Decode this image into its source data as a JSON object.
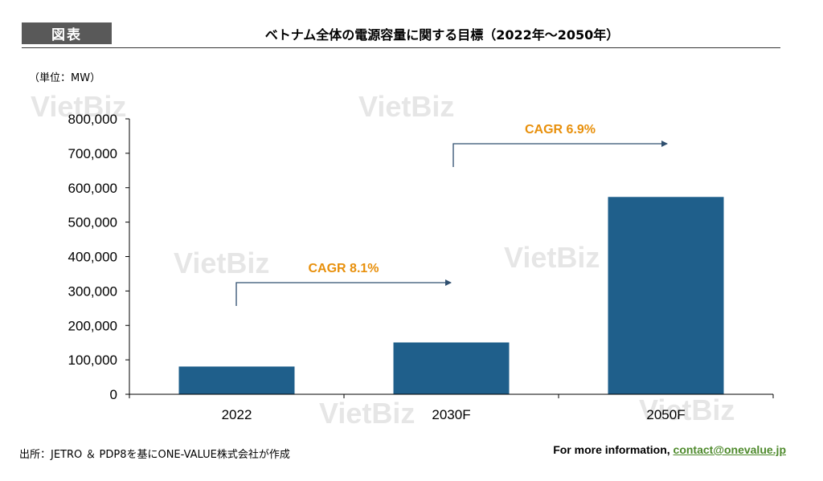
{
  "header": {
    "tag": "図表",
    "title": "ベトナム全体の電源容量に関する目標（2022年～2050年）"
  },
  "unit_label": "（単位：MW）",
  "watermark": "VietBiz",
  "chart_data": {
    "type": "bar",
    "categories": [
      "2022",
      "2030F",
      "2050F"
    ],
    "values": [
      80555,
      150489,
      573129
    ],
    "ylim": [
      0,
      800000
    ],
    "yticks": [
      "0",
      "100,000",
      "200,000",
      "300,000",
      "400,000",
      "500,000",
      "600,000",
      "700,000",
      "800,000"
    ],
    "bar_color": "#1f5f8b",
    "grid": false,
    "annotations": [
      {
        "label": "CAGR 8.1%",
        "from": "2022",
        "to": "2030F",
        "color": "#e8900c"
      },
      {
        "label": "CAGR 6.9%",
        "from": "2030F",
        "to": "2050F",
        "color": "#e8900c"
      }
    ]
  },
  "footer": {
    "source": "出所：JETRO ＆ PDP8を基にONE-VALUE株式会社が作成",
    "info_prefix": "For more information, ",
    "contact": "contact@onevalue.jp"
  }
}
